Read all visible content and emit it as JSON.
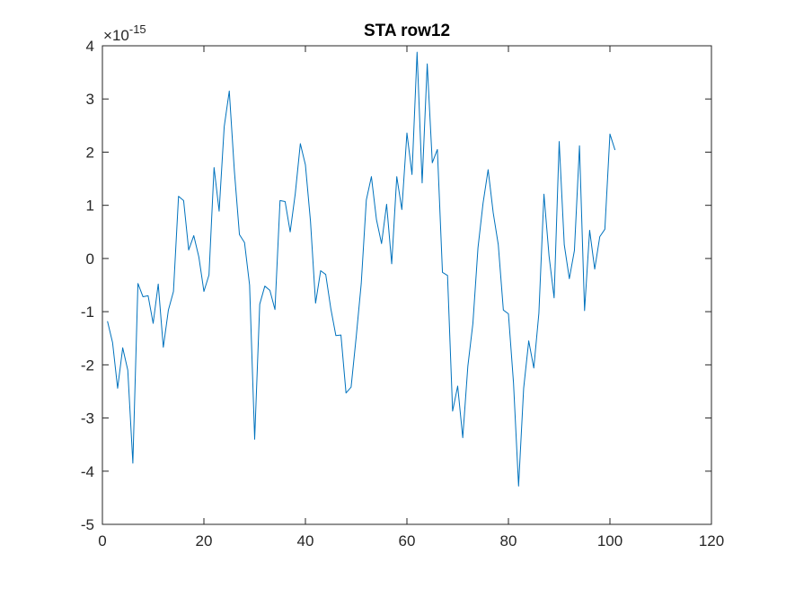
{
  "chart_data": {
    "type": "line",
    "title": "STA row12",
    "xlabel": "",
    "ylabel": "",
    "xlim": [
      0,
      120
    ],
    "ylim": [
      -5,
      4
    ],
    "y_multiplier": {
      "base": "10",
      "exponent": "-15",
      "prefix": "×"
    },
    "xticks": [
      0,
      20,
      40,
      60,
      80,
      100,
      120
    ],
    "yticks": [
      -5,
      -4,
      -3,
      -2,
      -1,
      0,
      1,
      2,
      3,
      4
    ],
    "xtick_labels": [
      "0",
      "20",
      "40",
      "60",
      "80",
      "100",
      "120"
    ],
    "ytick_labels": [
      "-5",
      "-4",
      "-3",
      "-2",
      "-1",
      "0",
      "1",
      "2",
      "3",
      "4"
    ],
    "grid": false,
    "line_color": "#0072BD",
    "x": [
      1,
      2,
      3,
      4,
      5,
      6,
      7,
      8,
      9,
      10,
      11,
      12,
      13,
      14,
      15,
      16,
      17,
      18,
      19,
      20,
      21,
      22,
      23,
      24,
      25,
      26,
      27,
      28,
      29,
      30,
      31,
      32,
      33,
      34,
      35,
      36,
      37,
      38,
      39,
      40,
      41,
      42,
      43,
      44,
      45,
      46,
      47,
      48,
      49,
      50,
      51,
      52,
      53,
      54,
      55,
      56,
      57,
      58,
      59,
      60,
      61,
      62,
      63,
      64,
      65,
      66,
      67,
      68,
      69,
      70,
      71,
      72,
      73,
      74,
      75,
      76,
      77,
      78,
      79,
      80,
      81,
      82,
      83,
      84,
      85,
      86,
      87,
      88,
      89,
      90,
      91,
      92,
      93,
      94,
      95,
      96,
      97,
      98,
      99,
      100,
      101
    ],
    "series": [
      {
        "values": [
          -1.18,
          -1.58,
          -2.44,
          -1.68,
          -2.1,
          -3.85,
          -0.47,
          -0.72,
          -0.7,
          -1.22,
          -0.48,
          -1.67,
          -0.97,
          -0.62,
          1.17,
          1.09,
          0.16,
          0.43,
          0.03,
          -0.62,
          -0.31,
          1.71,
          0.89,
          2.48,
          3.15,
          1.65,
          0.45,
          0.3,
          -0.5,
          -3.4,
          -0.86,
          -0.52,
          -0.6,
          -0.96,
          1.09,
          1.07,
          0.5,
          1.22,
          2.16,
          1.76,
          0.7,
          -0.84,
          -0.23,
          -0.3,
          -0.94,
          -1.45,
          -1.44,
          -2.53,
          -2.42,
          -1.48,
          -0.47,
          1.1,
          1.54,
          0.73,
          0.28,
          1.02,
          -0.1,
          1.54,
          0.92,
          2.36,
          1.58,
          3.88,
          1.42,
          3.66,
          1.8,
          2.05,
          -0.26,
          -0.32,
          -2.87,
          -2.4,
          -3.37,
          -2.03,
          -1.22,
          0.2,
          1.04,
          1.67,
          0.86,
          0.26,
          -0.97,
          -1.04,
          -2.34,
          -4.28,
          -2.44,
          -1.55,
          -2.06,
          -1.03,
          1.21,
          0.05,
          -0.74,
          2.2,
          0.26,
          -0.38,
          0.15,
          2.12,
          -0.98,
          0.53,
          -0.2,
          0.41,
          0.55,
          2.34,
          2.04
        ]
      }
    ]
  }
}
